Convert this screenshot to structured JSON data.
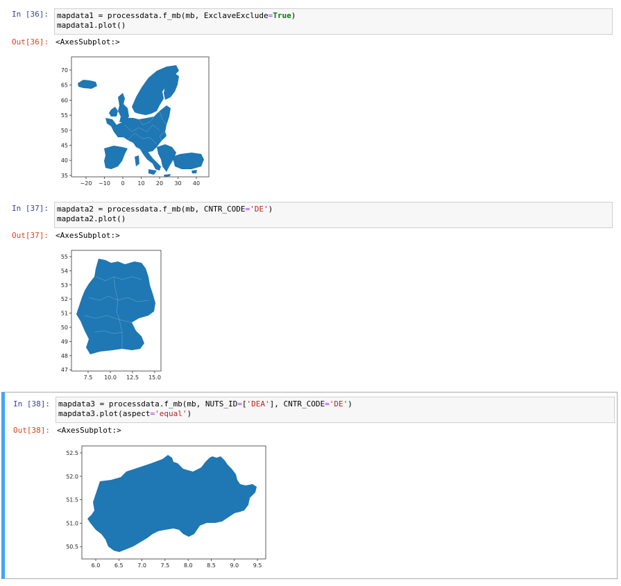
{
  "cells": [
    {
      "in_prompt": "In [36]:",
      "code_line1_pre": "mapdata1 = processdata.f_mb(mb, ExclaveExclude",
      "code_line1_op": "=",
      "code_line1_kw": "True",
      "code_line1_post": ")",
      "code_line2": "mapdata1.plot()",
      "out_prompt": "Out[36]:",
      "out_text": "<AxesSubplot:>"
    },
    {
      "in_prompt": "In [37]:",
      "code_line1_pre": "mapdata2 = processdata.f_mb(mb, CNTR_CODE",
      "code_line1_op": "=",
      "code_line1_str": "'DE'",
      "code_line1_post": ")",
      "code_line2": "mapdata2.plot()",
      "out_prompt": "Out[37]:",
      "out_text": "<AxesSubplot:>"
    },
    {
      "in_prompt": "In [38]:",
      "code_line1_pre": "mapdata3 = processdata.f_mb(mb, NUTS_ID",
      "code_line1_op1": "=",
      "code_line1_list_open": "[",
      "code_line1_str1": "'DEA'",
      "code_line1_mid": "], CNTR_CODE",
      "code_line1_op2": "=",
      "code_line1_str2": "'DE'",
      "code_line1_post": ")",
      "code_line2_pre": "mapdata3.plot(aspect",
      "code_line2_op": "=",
      "code_line2_str": "'equal'",
      "code_line2_post": ")",
      "out_prompt": "Out[38]:",
      "out_text": "<AxesSubplot:>"
    }
  ],
  "plots": [
    {
      "xticks": [
        "−20",
        "−10",
        "0",
        "10",
        "20",
        "30",
        "40"
      ],
      "yticks": [
        "70",
        "65",
        "60",
        "55",
        "50",
        "45",
        "40",
        "35"
      ]
    },
    {
      "xticks": [
        "7.5",
        "10.0",
        "12.5",
        "15.0"
      ],
      "yticks": [
        "55",
        "54",
        "53",
        "52",
        "51",
        "50",
        "49",
        "48",
        "47"
      ]
    },
    {
      "xticks": [
        "6.0",
        "6.5",
        "7.0",
        "7.5",
        "8.0",
        "8.5",
        "9.0",
        "9.5"
      ],
      "yticks": [
        "52.5",
        "52.0",
        "51.5",
        "51.0",
        "50.5"
      ]
    }
  ],
  "colors": {
    "fill": "#1f77b4",
    "in_prompt": "#303f9f",
    "out_prompt": "#d84315",
    "selected_bar": "#42a5f5"
  }
}
